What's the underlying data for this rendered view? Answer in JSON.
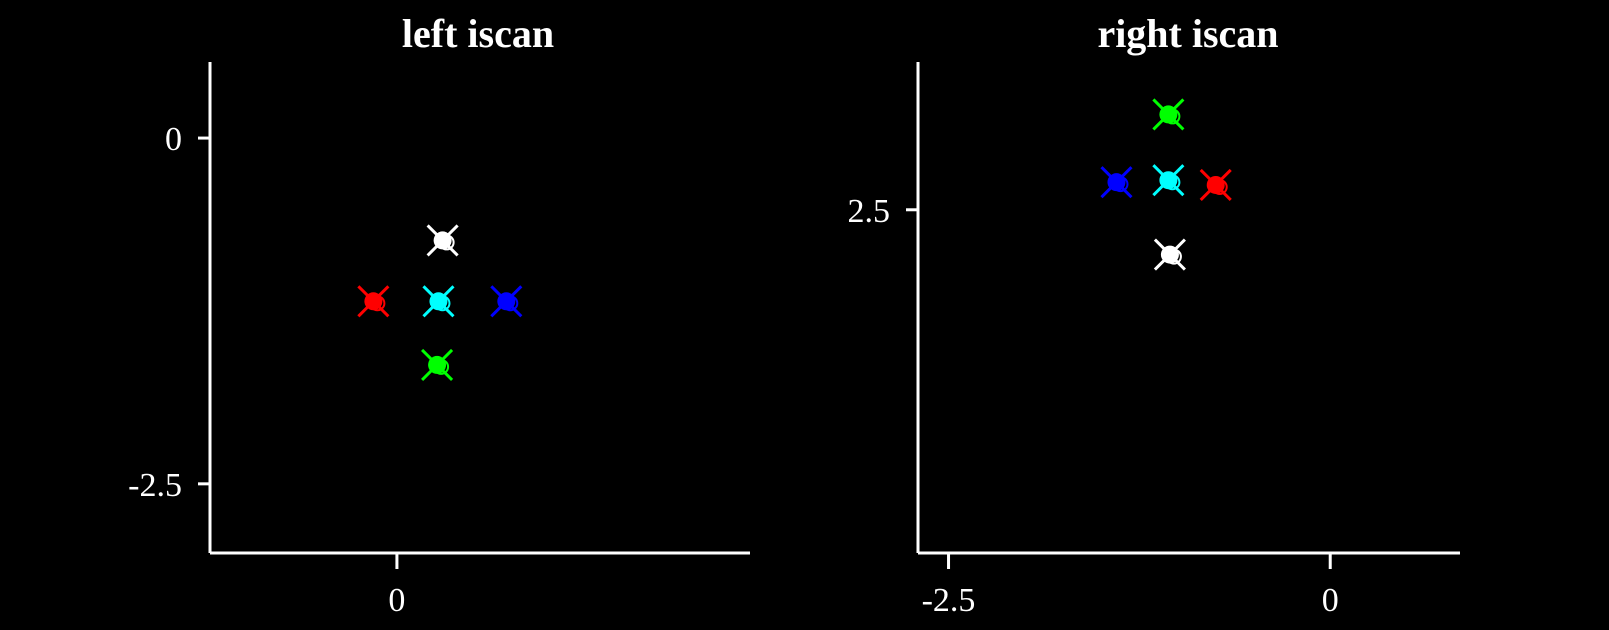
{
  "chart_data": [
    {
      "type": "scatter",
      "title": "left iscan",
      "xlim": [
        -1.35,
        2.55
      ],
      "ylim": [
        -3.0,
        0.55
      ],
      "xticks": [
        {
          "value": 0,
          "label": "0"
        }
      ],
      "yticks": [
        {
          "value": 0,
          "label": "0"
        },
        {
          "value": -2.5,
          "label": "-2.5"
        }
      ],
      "grid": false,
      "legend": "none",
      "series": [
        {
          "color": "#ff0000",
          "points": [
            {
              "x": -0.17,
              "y": -1.18
            }
          ]
        },
        {
          "color": "#00ffff",
          "points": [
            {
              "x": 0.3,
              "y": -1.18
            }
          ]
        },
        {
          "color": "#0000ff",
          "points": [
            {
              "x": 0.79,
              "y": -1.18
            }
          ]
        },
        {
          "color": "#ffffff",
          "points": [
            {
              "x": 0.33,
              "y": -0.74
            }
          ]
        },
        {
          "color": "#00ff00",
          "points": [
            {
              "x": 0.29,
              "y": -1.64
            }
          ]
        }
      ]
    },
    {
      "type": "scatter",
      "title": "right iscan",
      "xlim": [
        -2.7,
        0.85
      ],
      "ylim": [
        -1.1,
        4.05
      ],
      "xticks": [
        {
          "value": -2.5,
          "label": "-2.5"
        },
        {
          "value": 0,
          "label": "0"
        }
      ],
      "yticks": [
        {
          "value": 2.5,
          "label": "2.5"
        }
      ],
      "grid": false,
      "legend": "none",
      "series": [
        {
          "color": "#0000ff",
          "points": [
            {
              "x": -1.4,
              "y": 2.79
            }
          ]
        },
        {
          "color": "#00ffff",
          "points": [
            {
              "x": -1.06,
              "y": 2.81
            }
          ]
        },
        {
          "color": "#ff0000",
          "points": [
            {
              "x": -0.75,
              "y": 2.76
            }
          ]
        },
        {
          "color": "#00ff00",
          "points": [
            {
              "x": -1.06,
              "y": 3.5
            }
          ]
        },
        {
          "color": "#ffffff",
          "points": [
            {
              "x": -1.05,
              "y": 2.03
            }
          ]
        }
      ]
    }
  ]
}
